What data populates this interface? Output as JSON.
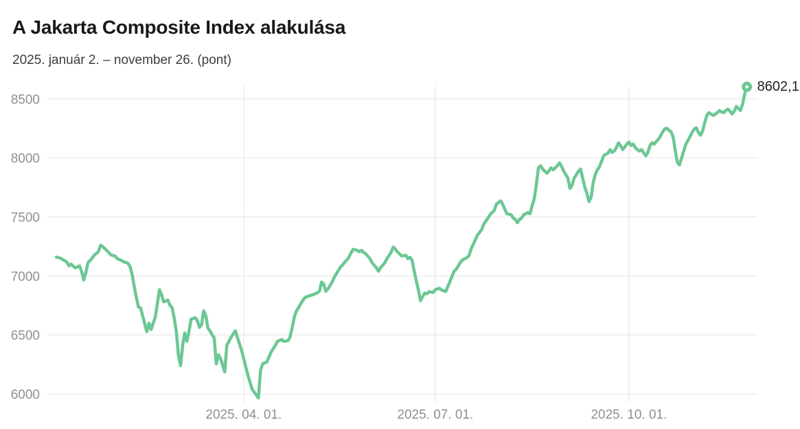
{
  "header": {
    "title": "A Jakarta Composite Index alakulása",
    "subtitle": "2025. január 2. – november 26. (pont)"
  },
  "chart": {
    "last_value_label": "8602,1",
    "line_color": "#6cc794",
    "grid_color": "#e4e4e4",
    "axis_label_color": "#8f8f8f"
  },
  "chart_data": {
    "type": "line",
    "title": "A Jakarta Composite Index alakulása",
    "subtitle": "2025. január 2. – november 26. (pont)",
    "unit": "pont",
    "grid": true,
    "legend": false,
    "last_value": 8602.1,
    "x_axis": {
      "type": "date",
      "start": "2025-01-02",
      "end": "2025-11-26",
      "ticks": [
        "2025. 04. 01.",
        "2025. 07. 01.",
        "2025. 10. 01."
      ],
      "tick_dates": [
        "2025-04-01",
        "2025-07-01",
        "2025-10-01"
      ]
    },
    "y_axis": {
      "min": 6000,
      "max": 8500,
      "ticks": [
        8500,
        8000,
        7500,
        7000,
        6500,
        6000
      ]
    },
    "series": [
      {
        "name": "Jakarta Composite Index",
        "points": [
          [
            "2025-01-02",
            7160
          ],
          [
            "2025-01-04",
            7150
          ],
          [
            "2025-01-07",
            7118
          ],
          [
            "2025-01-08",
            7085
          ],
          [
            "2025-01-09",
            7100
          ],
          [
            "2025-01-11",
            7068
          ],
          [
            "2025-01-13",
            7085
          ],
          [
            "2025-01-14",
            7040
          ],
          [
            "2025-01-15",
            6965
          ],
          [
            "2025-01-16",
            7025
          ],
          [
            "2025-01-17",
            7110
          ],
          [
            "2025-01-19",
            7150
          ],
          [
            "2025-01-20",
            7175
          ],
          [
            "2025-01-22",
            7205
          ],
          [
            "2025-01-23",
            7260
          ],
          [
            "2025-01-24",
            7248
          ],
          [
            "2025-01-26",
            7215
          ],
          [
            "2025-01-28",
            7178
          ],
          [
            "2025-01-30",
            7168
          ],
          [
            "2025-01-31",
            7146
          ],
          [
            "2025-02-02",
            7130
          ],
          [
            "2025-02-03",
            7120
          ],
          [
            "2025-02-05",
            7108
          ],
          [
            "2025-02-06",
            7080
          ],
          [
            "2025-02-07",
            7012
          ],
          [
            "2025-02-08",
            6912
          ],
          [
            "2025-02-09",
            6820
          ],
          [
            "2025-02-10",
            6737
          ],
          [
            "2025-02-11",
            6730
          ],
          [
            "2025-02-12",
            6662
          ],
          [
            "2025-02-14",
            6527
          ],
          [
            "2025-02-15",
            6600
          ],
          [
            "2025-02-16",
            6545
          ],
          [
            "2025-02-18",
            6650
          ],
          [
            "2025-02-19",
            6767
          ],
          [
            "2025-02-20",
            6883
          ],
          [
            "2025-02-21",
            6840
          ],
          [
            "2025-02-22",
            6780
          ],
          [
            "2025-02-24",
            6795
          ],
          [
            "2025-02-25",
            6750
          ],
          [
            "2025-02-26",
            6731
          ],
          [
            "2025-02-27",
            6644
          ],
          [
            "2025-02-28",
            6527
          ],
          [
            "2025-03-01",
            6330
          ],
          [
            "2025-03-02",
            6240
          ],
          [
            "2025-03-03",
            6411
          ],
          [
            "2025-03-04",
            6516
          ],
          [
            "2025-03-05",
            6446
          ],
          [
            "2025-03-06",
            6529
          ],
          [
            "2025-03-07",
            6634
          ],
          [
            "2025-03-09",
            6646
          ],
          [
            "2025-03-10",
            6620
          ],
          [
            "2025-03-11",
            6564
          ],
          [
            "2025-03-12",
            6587
          ],
          [
            "2025-03-13",
            6704
          ],
          [
            "2025-03-14",
            6663
          ],
          [
            "2025-03-15",
            6558
          ],
          [
            "2025-03-16",
            6535
          ],
          [
            "2025-03-17",
            6500
          ],
          [
            "2025-03-18",
            6477
          ],
          [
            "2025-03-19",
            6255
          ],
          [
            "2025-03-20",
            6331
          ],
          [
            "2025-03-21",
            6302
          ],
          [
            "2025-03-23",
            6187
          ],
          [
            "2025-03-24",
            6412
          ],
          [
            "2025-03-26",
            6480
          ],
          [
            "2025-03-28",
            6535
          ],
          [
            "2025-03-31",
            6370
          ],
          [
            "2025-04-03",
            6160
          ],
          [
            "2025-04-05",
            6040
          ],
          [
            "2025-04-07",
            5990
          ],
          [
            "2025-04-08",
            5965
          ],
          [
            "2025-04-09",
            6200
          ],
          [
            "2025-04-10",
            6255
          ],
          [
            "2025-04-12",
            6270
          ],
          [
            "2025-04-14",
            6355
          ],
          [
            "2025-04-16",
            6410
          ],
          [
            "2025-04-17",
            6445
          ],
          [
            "2025-04-19",
            6460
          ],
          [
            "2025-04-20",
            6445
          ],
          [
            "2025-04-22",
            6452
          ],
          [
            "2025-04-23",
            6480
          ],
          [
            "2025-04-24",
            6560
          ],
          [
            "2025-04-25",
            6650
          ],
          [
            "2025-04-26",
            6700
          ],
          [
            "2025-04-27",
            6730
          ],
          [
            "2025-04-29",
            6790
          ],
          [
            "2025-04-30",
            6815
          ],
          [
            "2025-05-02",
            6830
          ],
          [
            "2025-05-04",
            6842
          ],
          [
            "2025-05-06",
            6856
          ],
          [
            "2025-05-07",
            6872
          ],
          [
            "2025-05-08",
            6948
          ],
          [
            "2025-05-09",
            6930
          ],
          [
            "2025-05-10",
            6870
          ],
          [
            "2025-05-11",
            6889
          ],
          [
            "2025-05-12",
            6918
          ],
          [
            "2025-05-13",
            6948
          ],
          [
            "2025-05-14",
            6988
          ],
          [
            "2025-05-15",
            7018
          ],
          [
            "2025-05-16",
            7047
          ],
          [
            "2025-05-17",
            7076
          ],
          [
            "2025-05-18",
            7093
          ],
          [
            "2025-05-19",
            7117
          ],
          [
            "2025-05-20",
            7134
          ],
          [
            "2025-05-21",
            7160
          ],
          [
            "2025-05-22",
            7195
          ],
          [
            "2025-05-23",
            7225
          ],
          [
            "2025-05-25",
            7216
          ],
          [
            "2025-05-26",
            7204
          ],
          [
            "2025-05-27",
            7216
          ],
          [
            "2025-05-28",
            7198
          ],
          [
            "2025-05-29",
            7187
          ],
          [
            "2025-05-31",
            7146
          ],
          [
            "2025-06-01",
            7111
          ],
          [
            "2025-06-03",
            7070
          ],
          [
            "2025-06-04",
            7040
          ],
          [
            "2025-06-05",
            7070
          ],
          [
            "2025-06-07",
            7111
          ],
          [
            "2025-06-08",
            7146
          ],
          [
            "2025-06-10",
            7200
          ],
          [
            "2025-06-11",
            7245
          ],
          [
            "2025-06-12",
            7228
          ],
          [
            "2025-06-13",
            7204
          ],
          [
            "2025-06-14",
            7187
          ],
          [
            "2025-06-15",
            7169
          ],
          [
            "2025-06-17",
            7175
          ],
          [
            "2025-06-18",
            7146
          ],
          [
            "2025-06-19",
            7158
          ],
          [
            "2025-06-20",
            7130
          ],
          [
            "2025-06-21",
            7040
          ],
          [
            "2025-06-22",
            6955
          ],
          [
            "2025-06-23",
            6877
          ],
          [
            "2025-06-24",
            6790
          ],
          [
            "2025-06-25",
            6825
          ],
          [
            "2025-06-26",
            6854
          ],
          [
            "2025-06-27",
            6848
          ],
          [
            "2025-06-28",
            6866
          ],
          [
            "2025-06-30",
            6860
          ],
          [
            "2025-07-01",
            6883
          ],
          [
            "2025-07-03",
            6895
          ],
          [
            "2025-07-04",
            6880
          ],
          [
            "2025-07-06",
            6868
          ],
          [
            "2025-07-07",
            6912
          ],
          [
            "2025-07-08",
            6953
          ],
          [
            "2025-07-09",
            7000
          ],
          [
            "2025-07-10",
            7041
          ],
          [
            "2025-07-11",
            7058
          ],
          [
            "2025-07-12",
            7087
          ],
          [
            "2025-07-13",
            7117
          ],
          [
            "2025-07-14",
            7135
          ],
          [
            "2025-07-16",
            7155
          ],
          [
            "2025-07-17",
            7170
          ],
          [
            "2025-07-18",
            7228
          ],
          [
            "2025-07-20",
            7304
          ],
          [
            "2025-07-21",
            7345
          ],
          [
            "2025-07-23",
            7391
          ],
          [
            "2025-07-24",
            7438
          ],
          [
            "2025-07-26",
            7490
          ],
          [
            "2025-07-27",
            7519
          ],
          [
            "2025-07-29",
            7555
          ],
          [
            "2025-07-30",
            7607
          ],
          [
            "2025-08-01",
            7636
          ],
          [
            "2025-08-02",
            7607
          ],
          [
            "2025-08-04",
            7526
          ],
          [
            "2025-08-06",
            7519
          ],
          [
            "2025-08-07",
            7490
          ],
          [
            "2025-08-08",
            7479
          ],
          [
            "2025-08-09",
            7450
          ],
          [
            "2025-08-10",
            7479
          ],
          [
            "2025-08-11",
            7490
          ],
          [
            "2025-08-12",
            7519
          ],
          [
            "2025-08-13",
            7526
          ],
          [
            "2025-08-14",
            7537
          ],
          [
            "2025-08-15",
            7526
          ],
          [
            "2025-08-16",
            7595
          ],
          [
            "2025-08-17",
            7654
          ],
          [
            "2025-08-18",
            7771
          ],
          [
            "2025-08-19",
            7916
          ],
          [
            "2025-08-20",
            7934
          ],
          [
            "2025-08-21",
            7905
          ],
          [
            "2025-08-22",
            7887
          ],
          [
            "2025-08-23",
            7869
          ],
          [
            "2025-08-24",
            7890
          ],
          [
            "2025-08-25",
            7916
          ],
          [
            "2025-08-26",
            7899
          ],
          [
            "2025-08-27",
            7916
          ],
          [
            "2025-08-28",
            7934
          ],
          [
            "2025-08-29",
            7957
          ],
          [
            "2025-08-30",
            7928
          ],
          [
            "2025-08-31",
            7887
          ],
          [
            "2025-09-01",
            7858
          ],
          [
            "2025-09-02",
            7829
          ],
          [
            "2025-09-03",
            7741
          ],
          [
            "2025-09-04",
            7771
          ],
          [
            "2025-09-05",
            7829
          ],
          [
            "2025-09-07",
            7887
          ],
          [
            "2025-09-08",
            7905
          ],
          [
            "2025-09-09",
            7829
          ],
          [
            "2025-09-10",
            7753
          ],
          [
            "2025-09-11",
            7700
          ],
          [
            "2025-09-12",
            7630
          ],
          [
            "2025-09-13",
            7665
          ],
          [
            "2025-09-14",
            7790
          ],
          [
            "2025-09-15",
            7860
          ],
          [
            "2025-09-16",
            7900
          ],
          [
            "2025-09-17",
            7925
          ],
          [
            "2025-09-18",
            7970
          ],
          [
            "2025-09-19",
            8020
          ],
          [
            "2025-09-21",
            8040
          ],
          [
            "2025-09-22",
            8070
          ],
          [
            "2025-09-23",
            8047
          ],
          [
            "2025-09-24",
            8058
          ],
          [
            "2025-09-25",
            8087
          ],
          [
            "2025-09-26",
            8128
          ],
          [
            "2025-09-27",
            8105
          ],
          [
            "2025-09-28",
            8070
          ],
          [
            "2025-09-30",
            8117
          ],
          [
            "2025-10-01",
            8134
          ],
          [
            "2025-10-02",
            8105
          ],
          [
            "2025-10-03",
            8117
          ],
          [
            "2025-10-04",
            8087
          ],
          [
            "2025-10-05",
            8070
          ],
          [
            "2025-10-06",
            8058
          ],
          [
            "2025-10-07",
            8070
          ],
          [
            "2025-10-08",
            8041
          ],
          [
            "2025-10-09",
            8018
          ],
          [
            "2025-10-10",
            8047
          ],
          [
            "2025-10-11",
            8105
          ],
          [
            "2025-10-12",
            8128
          ],
          [
            "2025-10-13",
            8117
          ],
          [
            "2025-10-14",
            8140
          ],
          [
            "2025-10-15",
            8157
          ],
          [
            "2025-10-16",
            8186
          ],
          [
            "2025-10-17",
            8221
          ],
          [
            "2025-10-18",
            8245
          ],
          [
            "2025-10-19",
            8251
          ],
          [
            "2025-10-20",
            8233
          ],
          [
            "2025-10-21",
            8221
          ],
          [
            "2025-10-22",
            8175
          ],
          [
            "2025-10-23",
            8058
          ],
          [
            "2025-10-24",
            7960
          ],
          [
            "2025-10-25",
            7941
          ],
          [
            "2025-10-26",
            8000
          ],
          [
            "2025-10-27",
            8058
          ],
          [
            "2025-10-28",
            8117
          ],
          [
            "2025-10-29",
            8146
          ],
          [
            "2025-10-30",
            8180
          ],
          [
            "2025-10-31",
            8215
          ],
          [
            "2025-11-01",
            8245
          ],
          [
            "2025-11-02",
            8255
          ],
          [
            "2025-11-03",
            8215
          ],
          [
            "2025-11-04",
            8192
          ],
          [
            "2025-11-05",
            8230
          ],
          [
            "2025-11-06",
            8300
          ],
          [
            "2025-11-07",
            8360
          ],
          [
            "2025-11-08",
            8383
          ],
          [
            "2025-11-09",
            8370
          ],
          [
            "2025-11-10",
            8360
          ],
          [
            "2025-11-11",
            8372
          ],
          [
            "2025-11-12",
            8383
          ],
          [
            "2025-11-13",
            8401
          ],
          [
            "2025-11-14",
            8390
          ],
          [
            "2025-11-15",
            8383
          ],
          [
            "2025-11-16",
            8401
          ],
          [
            "2025-11-17",
            8413
          ],
          [
            "2025-11-18",
            8395
          ],
          [
            "2025-11-19",
            8372
          ],
          [
            "2025-11-20",
            8395
          ],
          [
            "2025-11-21",
            8436
          ],
          [
            "2025-11-22",
            8418
          ],
          [
            "2025-11-23",
            8401
          ],
          [
            "2025-11-24",
            8459
          ],
          [
            "2025-11-25",
            8545
          ],
          [
            "2025-11-26",
            8602.1
          ]
        ]
      }
    ]
  }
}
